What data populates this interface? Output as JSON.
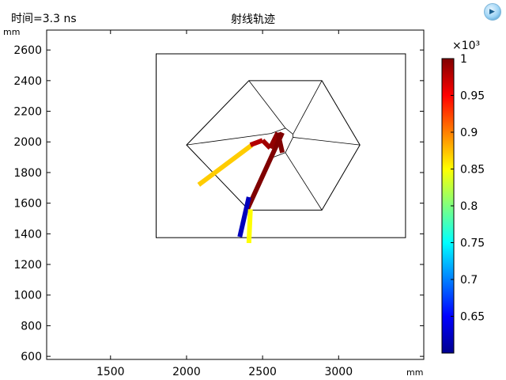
{
  "header": {
    "time_label": "时间=3.3 ns",
    "title": "射线轨迹",
    "logo_icon": "comsol-logo-icon"
  },
  "chart_data": {
    "type": "scatter",
    "title": "射线轨迹",
    "xlabel": "mm",
    "ylabel": "mm",
    "xlim": [
      1080,
      3560
    ],
    "ylim": [
      580,
      2730
    ],
    "grid": false,
    "x_ticks": [
      1500,
      2000,
      2500,
      3000
    ],
    "y_ticks": [
      600,
      800,
      1000,
      1200,
      1400,
      1600,
      1800,
      2000,
      2200,
      2400,
      2600
    ],
    "geometry": {
      "rectangle": {
        "x": [
          1800,
          3440
        ],
        "y": [
          1375,
          2575
        ]
      },
      "hexagon": [
        [
          2000,
          1980
        ],
        [
          2410,
          2400
        ],
        [
          2890,
          2400
        ],
        [
          3140,
          1980
        ],
        [
          2890,
          1555
        ],
        [
          2410,
          1555
        ]
      ],
      "center": [
        2620,
        2075
      ],
      "inner_lines": [
        [
          [
            2000,
            1980
          ],
          [
            2555,
            2055
          ]
        ],
        [
          [
            2410,
            2400
          ],
          [
            2650,
            2090
          ]
        ],
        [
          [
            2890,
            2400
          ],
          [
            2700,
            2050
          ]
        ],
        [
          [
            3140,
            1980
          ],
          [
            2700,
            2030
          ]
        ],
        [
          [
            2890,
            1555
          ],
          [
            2650,
            1930
          ]
        ],
        [
          [
            2410,
            1555
          ],
          [
            2570,
            1900
          ]
        ],
        [
          [
            2555,
            2055
          ],
          [
            2650,
            2090
          ]
        ],
        [
          [
            2650,
            2090
          ],
          [
            2700,
            2050
          ]
        ],
        [
          [
            2700,
            2050
          ],
          [
            2700,
            2030
          ]
        ],
        [
          [
            2700,
            2030
          ],
          [
            2650,
            1930
          ]
        ],
        [
          [
            2650,
            1930
          ],
          [
            2570,
            1900
          ]
        ]
      ]
    },
    "rays": [
      {
        "points": [
          [
            2080,
            1720
          ],
          [
            2430,
            1980
          ]
        ],
        "value_start": 870,
        "value_end": 890
      },
      {
        "points": [
          [
            2420,
            1980
          ],
          [
            2500,
            2010
          ],
          [
            2550,
            1960
          ],
          [
            2600,
            2060
          ],
          [
            2630,
            1930
          ]
        ],
        "value_start": 980,
        "value_end": 1000
      },
      {
        "points": [
          [
            2630,
            2060
          ],
          [
            2400,
            1560
          ]
        ],
        "value_start": 1000,
        "value_end": 990
      },
      {
        "points": [
          [
            2410,
            1640
          ],
          [
            2350,
            1380
          ]
        ],
        "value_start": 620,
        "value_end": 610
      },
      {
        "points": [
          [
            2420,
            1560
          ],
          [
            2410,
            1340
          ]
        ],
        "value_start": 850,
        "value_end": 850
      }
    ],
    "colorbar": {
      "exponent": "×10³",
      "range": [
        0.6,
        1.0
      ],
      "ticks": [
        "1",
        "0.95",
        "0.9",
        "0.85",
        "0.8",
        "0.75",
        "0.7",
        "0.65"
      ],
      "tick_values": [
        1.0,
        0.95,
        0.9,
        0.85,
        0.8,
        0.75,
        0.7,
        0.65
      ],
      "colormap": "jet"
    }
  }
}
